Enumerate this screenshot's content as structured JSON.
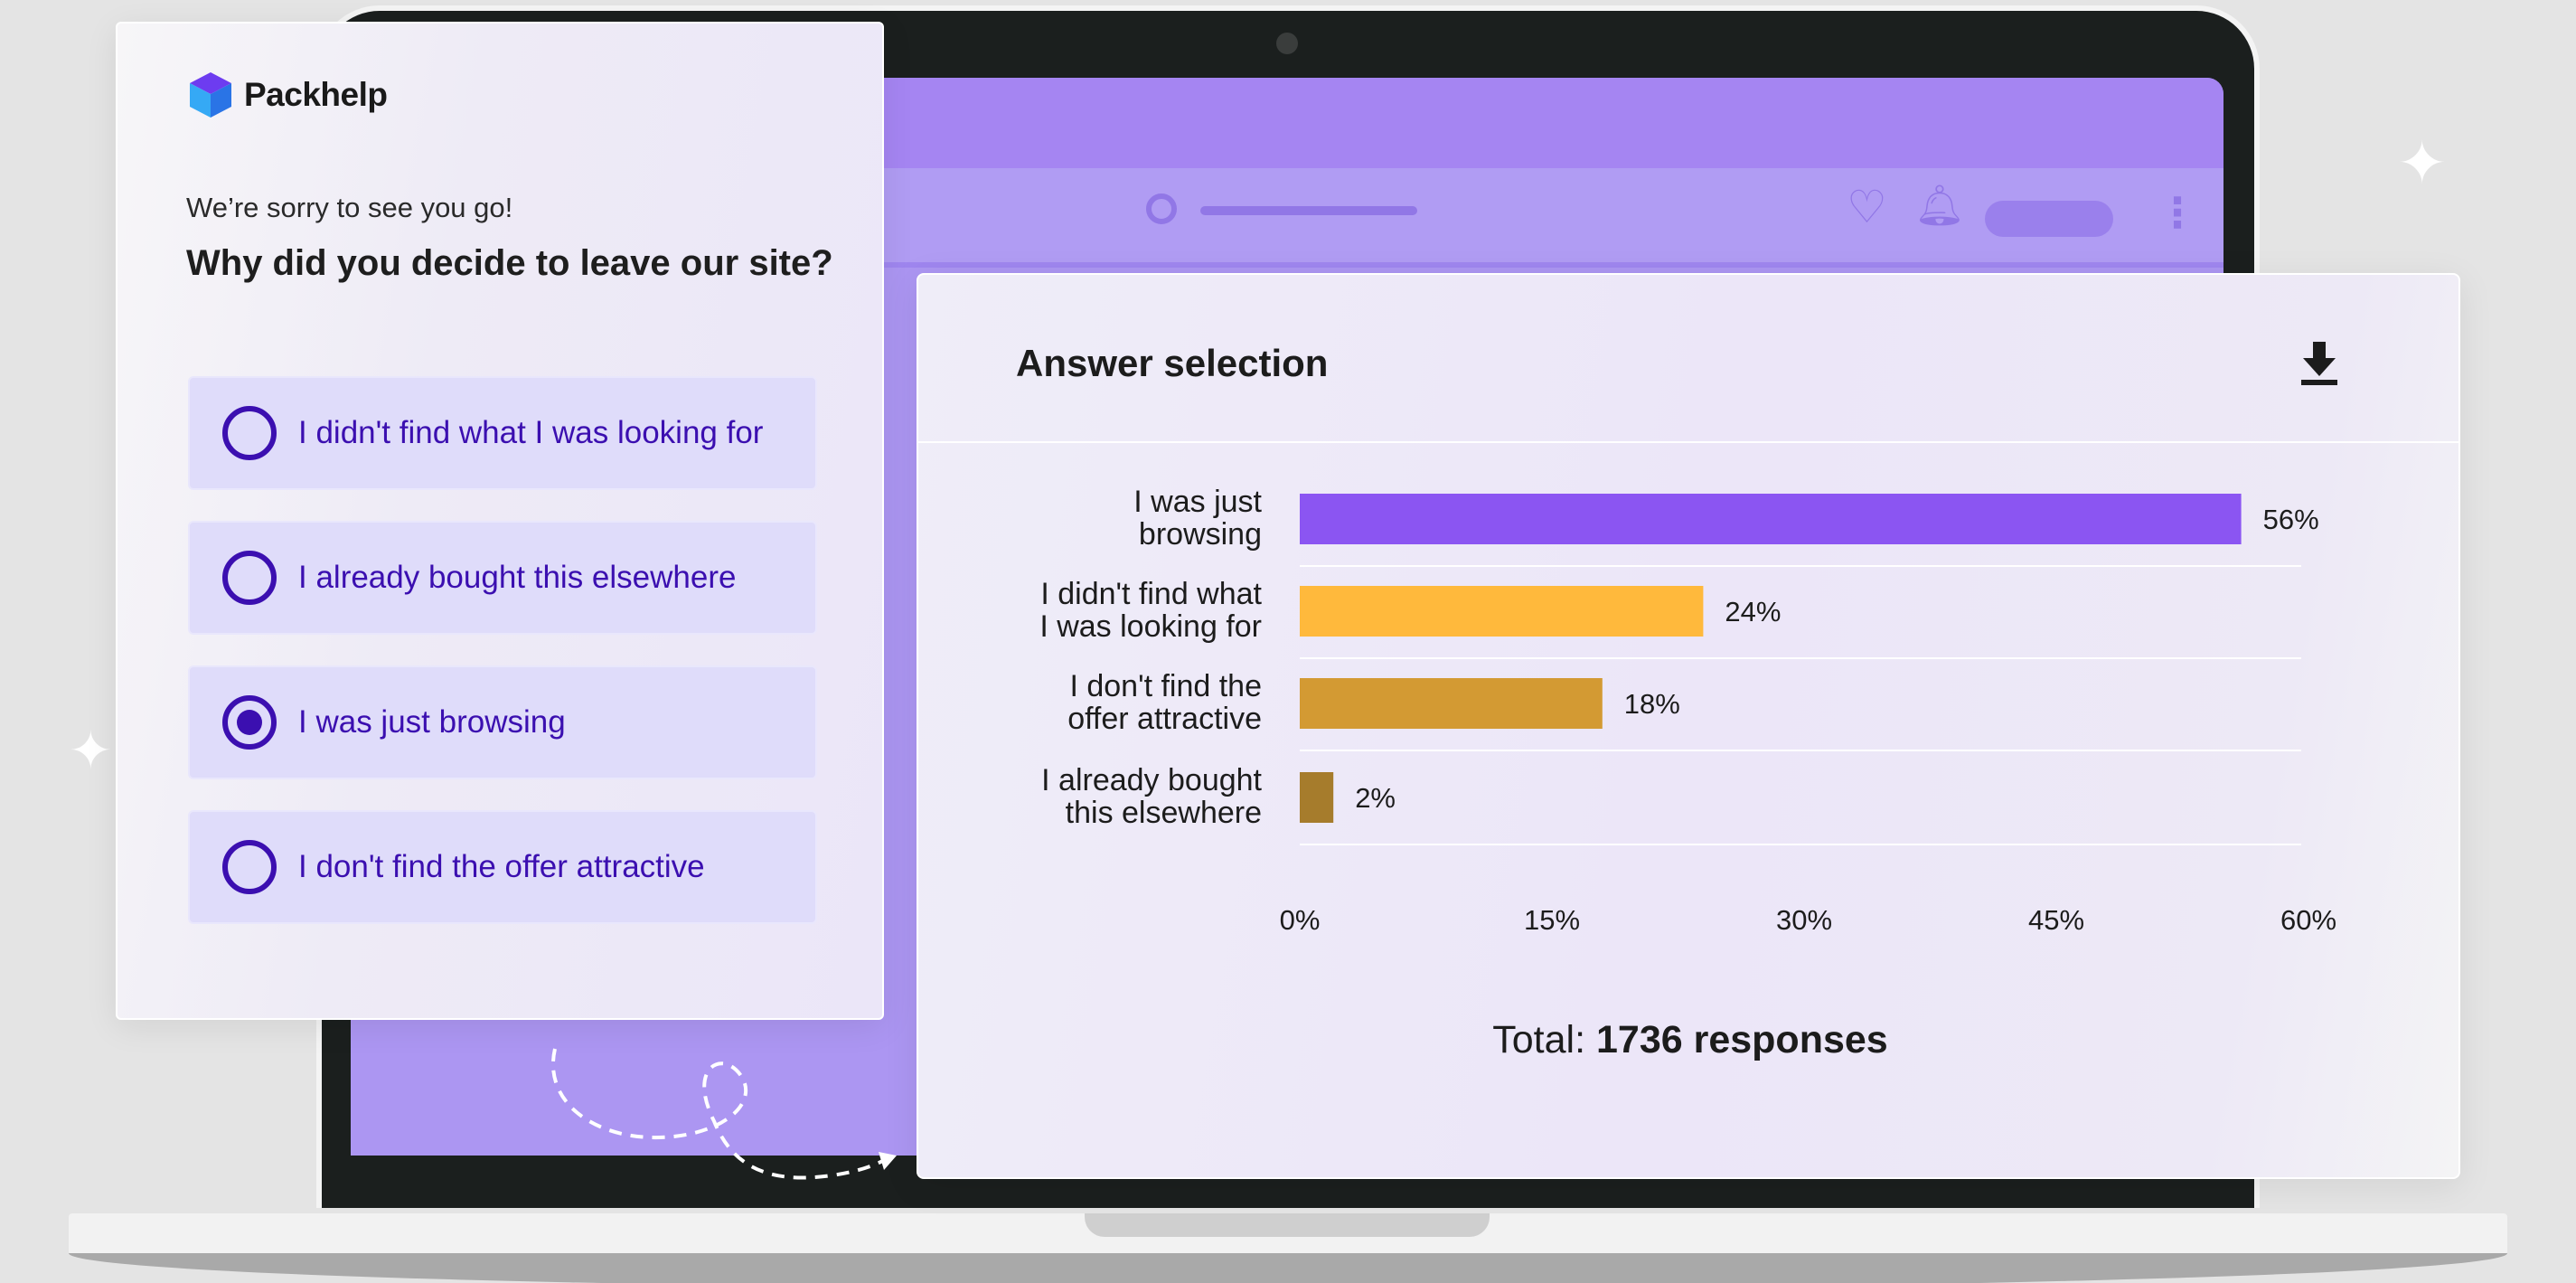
{
  "survey": {
    "brand": "Packhelp",
    "subtitle": "We’re sorry to see you go!",
    "question": "Why did you decide to leave our site?",
    "options": [
      {
        "label": "I didn't find what I was looking for",
        "selected": false
      },
      {
        "label": "I already bought this elsewhere",
        "selected": false
      },
      {
        "label": "I was just browsing",
        "selected": true
      },
      {
        "label": "I don't find the offer attractive",
        "selected": false
      }
    ],
    "accent_color": "#3b0fb0"
  },
  "results": {
    "title": "Answer selection",
    "download_icon": "download-icon",
    "total_prefix": "Total:",
    "total_value": "1736 responses"
  },
  "chart_data": {
    "type": "bar",
    "orientation": "horizontal",
    "categories": [
      [
        "I was just",
        "browsing"
      ],
      [
        "I didn't find what",
        "I was looking for"
      ],
      [
        "I don't find the",
        "offer attractive"
      ],
      [
        "I already bought",
        "this elsewhere"
      ]
    ],
    "values": [
      56,
      24,
      18,
      2
    ],
    "value_labels": [
      "56%",
      "24%",
      "18%",
      "2%"
    ],
    "colors": [
      "#8b55f2",
      "#ffb93c",
      "#d39a33",
      "#a67c2c"
    ],
    "xlim": [
      0,
      60
    ],
    "xticks": [
      "0%",
      "15%",
      "30%",
      "45%",
      "60%"
    ],
    "grid": true
  }
}
